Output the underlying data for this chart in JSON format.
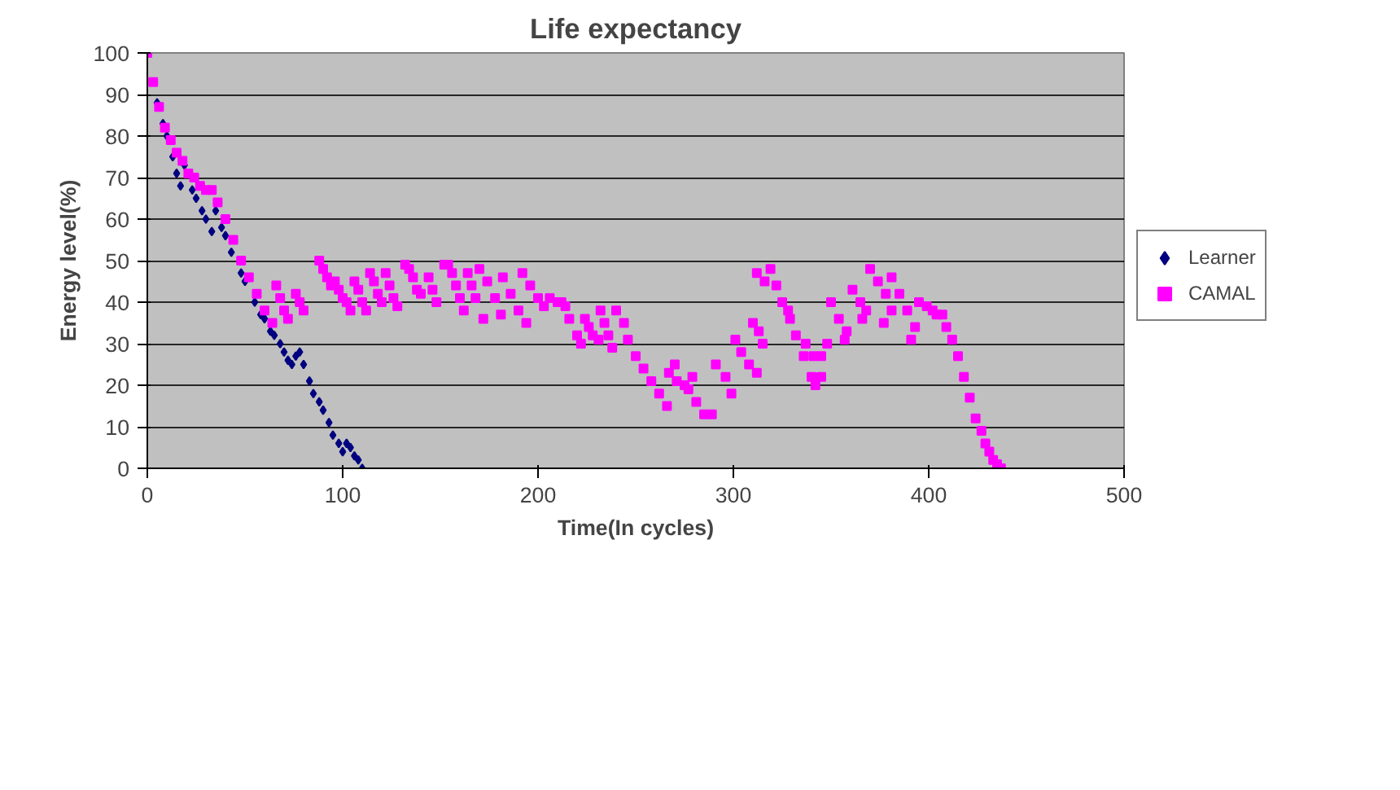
{
  "chart_data": {
    "type": "scatter",
    "title": "Life expectancy",
    "xlabel": "Time(In cycles)",
    "ylabel": "Energy level(%)",
    "xlim": [
      0,
      500
    ],
    "ylim": [
      0,
      100
    ],
    "xticks": [
      0,
      100,
      200,
      300,
      400,
      500
    ],
    "yticks": [
      0,
      10,
      20,
      30,
      40,
      50,
      60,
      70,
      80,
      90,
      100
    ],
    "grid": "y",
    "legend": "right",
    "series": [
      {
        "name": "Learner",
        "color": "#000080",
        "marker": "diamond",
        "x": [
          5,
          8,
          10,
          13,
          15,
          17,
          19,
          23,
          25,
          28,
          30,
          33,
          35,
          38,
          40,
          43,
          48,
          50,
          55,
          58,
          60,
          63,
          65,
          68,
          70,
          72,
          74,
          76,
          78,
          80,
          83,
          85,
          88,
          90,
          93,
          95,
          98,
          100,
          102,
          104,
          106,
          108,
          110
        ],
        "values": [
          88,
          83,
          80,
          75,
          71,
          68,
          73,
          67,
          65,
          62,
          60,
          57,
          62,
          58,
          56,
          52,
          47,
          45,
          40,
          37,
          36,
          33,
          32,
          30,
          28,
          26,
          25,
          27,
          28,
          25,
          21,
          18,
          16,
          14,
          11,
          8,
          6,
          4,
          6,
          5,
          3,
          2,
          0
        ]
      },
      {
        "name": "CAMAL",
        "color": "#ff00ff",
        "marker": "square",
        "x": [
          0,
          3,
          6,
          9,
          12,
          15,
          18,
          21,
          24,
          27,
          30,
          33,
          36,
          40,
          44,
          48,
          52,
          56,
          60,
          64,
          66,
          68,
          70,
          72,
          76,
          78,
          80,
          88,
          90,
          92,
          94,
          96,
          98,
          100,
          102,
          104,
          106,
          108,
          110,
          112,
          114,
          116,
          118,
          120,
          122,
          124,
          126,
          128,
          132,
          134,
          136,
          138,
          140,
          144,
          146,
          148,
          152,
          154,
          156,
          158,
          160,
          162,
          164,
          166,
          168,
          172,
          170,
          174,
          178,
          181,
          182,
          186,
          190,
          194,
          192,
          196,
          200,
          203,
          206,
          210,
          214,
          212,
          216,
          220,
          222,
          224,
          226,
          228,
          231,
          232,
          234,
          236,
          238,
          240,
          244,
          246,
          250,
          254,
          258,
          262,
          266,
          270,
          267,
          271,
          275,
          279,
          277,
          281,
          285,
          289,
          291,
          296,
          299,
          301,
          304,
          308,
          312,
          310,
          313,
          315,
          312,
          316,
          319,
          322,
          325,
          329,
          328,
          332,
          336,
          340,
          342,
          337,
          341,
          345,
          348,
          345,
          350,
          354,
          358,
          357,
          361,
          365,
          368,
          366,
          370,
          374,
          378,
          381,
          377,
          381,
          385,
          389,
          393,
          391,
          395,
          399,
          402,
          404,
          407,
          409,
          412,
          415,
          418,
          421,
          424,
          427,
          429,
          431,
          433,
          435,
          437
        ],
        "values": [
          100,
          93,
          87,
          82,
          79,
          76,
          74,
          71,
          70,
          68,
          67,
          67,
          64,
          60,
          55,
          50,
          46,
          42,
          38,
          35,
          44,
          41,
          38,
          36,
          42,
          40,
          38,
          50,
          48,
          46,
          44,
          45,
          43,
          41,
          40,
          38,
          45,
          43,
          40,
          38,
          47,
          45,
          42,
          40,
          47,
          44,
          41,
          39,
          49,
          48,
          46,
          43,
          42,
          46,
          43,
          40,
          49,
          49,
          47,
          44,
          41,
          38,
          47,
          44,
          41,
          36,
          48,
          45,
          41,
          37,
          46,
          42,
          38,
          35,
          47,
          44,
          41,
          39,
          41,
          40,
          39,
          40,
          36,
          32,
          30,
          36,
          34,
          32,
          31,
          38,
          35,
          32,
          29,
          38,
          35,
          31,
          27,
          24,
          21,
          18,
          15,
          25,
          23,
          21,
          20,
          22,
          19,
          16,
          13,
          13,
          25,
          22,
          18,
          31,
          28,
          25,
          23,
          35,
          33,
          30,
          47,
          45,
          48,
          44,
          40,
          36,
          38,
          32,
          27,
          22,
          20,
          30,
          27,
          22,
          30,
          27,
          40,
          36,
          33,
          31,
          43,
          40,
          38,
          36,
          48,
          45,
          42,
          38,
          35,
          46,
          42,
          38,
          34,
          31,
          40,
          39,
          38,
          37,
          37,
          34,
          31,
          27,
          22,
          17,
          12,
          9,
          6,
          4,
          2,
          1,
          0
        ]
      }
    ]
  }
}
